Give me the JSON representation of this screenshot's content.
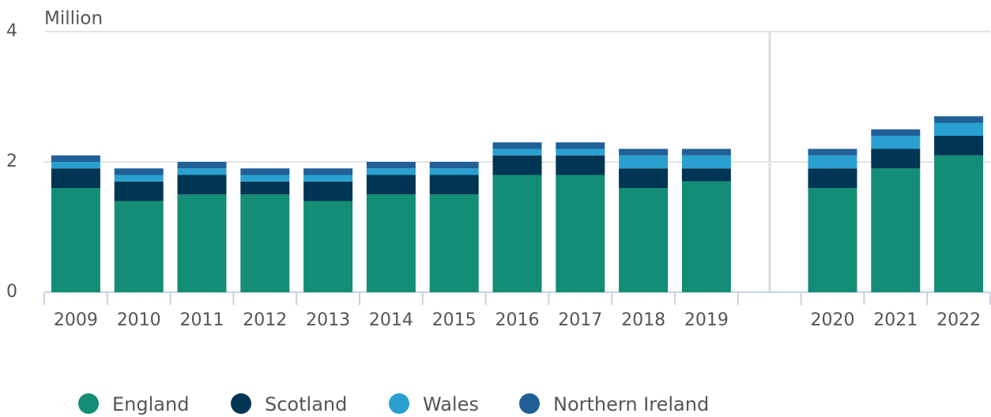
{
  "chart_data": {
    "type": "bar",
    "stacked": true,
    "y_axis_label": "Million",
    "categories": [
      "2009",
      "2010",
      "2011",
      "2012",
      "2013",
      "2014",
      "2015",
      "2016",
      "2017",
      "2018",
      "2019",
      null,
      "2020",
      "2021",
      "2022"
    ],
    "series": [
      {
        "name": "England",
        "color": "#138d75",
        "values": [
          1.6,
          1.4,
          1.5,
          1.5,
          1.4,
          1.5,
          1.5,
          1.8,
          1.8,
          1.6,
          1.7,
          null,
          1.6,
          1.9,
          2.1
        ]
      },
      {
        "name": "Scotland",
        "color": "#003554",
        "values": [
          0.3,
          0.3,
          0.3,
          0.2,
          0.3,
          0.3,
          0.3,
          0.3,
          0.3,
          0.3,
          0.2,
          null,
          0.3,
          0.3,
          0.3
        ]
      },
      {
        "name": "Wales",
        "color": "#29a0d0",
        "values": [
          0.1,
          0.1,
          0.1,
          0.1,
          0.1,
          0.1,
          0.1,
          0.1,
          0.1,
          0.2,
          0.2,
          null,
          0.2,
          0.2,
          0.2
        ]
      },
      {
        "name": "Northern Ireland",
        "color": "#206097",
        "values": [
          0.1,
          0.1,
          0.1,
          0.1,
          0.1,
          0.1,
          0.1,
          0.1,
          0.1,
          0.1,
          0.1,
          null,
          0.1,
          0.1,
          0.1
        ]
      }
    ],
    "ylim": [
      0,
      4
    ],
    "yticks": [
      0,
      2,
      4
    ],
    "grid": true,
    "legend": "bottom"
  }
}
